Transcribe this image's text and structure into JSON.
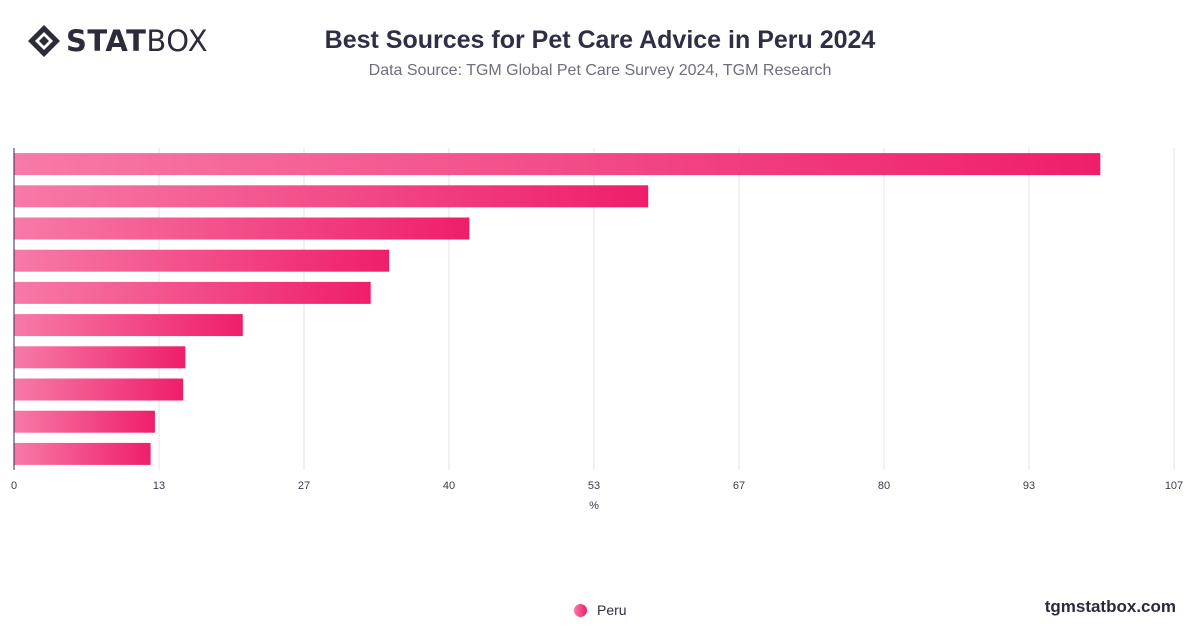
{
  "header": {
    "logo_text_bold": "STAT",
    "logo_text_light": "BOX",
    "title": "Best Sources for Pet Care Advice in Peru 2024",
    "subtitle": "Data Source: TGM Global Pet Care Survey 2024, TGM Research"
  },
  "legend": {
    "label": "Peru"
  },
  "footer": {
    "site": "tgmstatbox.com"
  },
  "colors": {
    "bar_start": "#f77aa8",
    "bar_end": "#ef1e6b",
    "grid": "#e3e3e8",
    "axis_text": "#3a3a4a"
  },
  "chart_data": {
    "type": "bar",
    "orientation": "horizontal",
    "categories": [
      "",
      "",
      "",
      "",
      "",
      "",
      "",
      "",
      "",
      ""
    ],
    "series": [
      {
        "name": "Peru",
        "values": [
          100.2,
          58.5,
          42.0,
          34.6,
          32.9,
          21.1,
          15.8,
          15.6,
          13.0,
          12.6
        ]
      }
    ],
    "xlabel": "%",
    "xlim": [
      0,
      107
    ],
    "xticks": [
      "0",
      "13",
      "27",
      "40",
      "53",
      "67",
      "80",
      "93",
      "107"
    ],
    "grid": true,
    "legend_position": "bottom"
  }
}
